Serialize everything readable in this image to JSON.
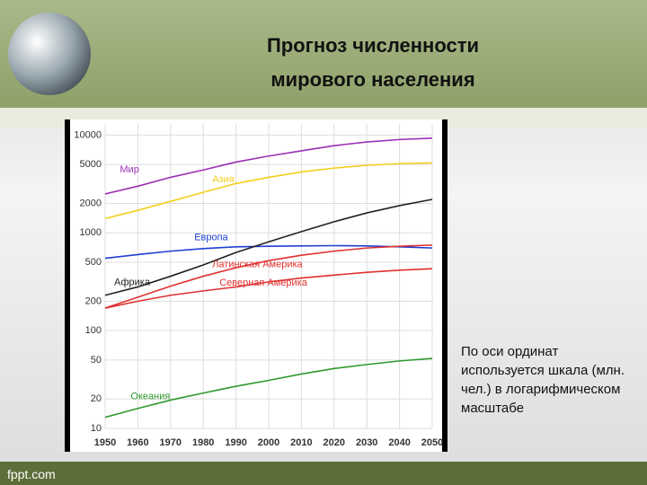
{
  "chart_data": {
    "type": "line",
    "title": "Прогноз численности мирового населения",
    "annotation": "По оси ординат используется шкала (млн. чел.) в логарифмическом масштабе",
    "x": [
      1950,
      1960,
      1970,
      1980,
      1990,
      2000,
      2010,
      2020,
      2030,
      2040,
      2050
    ],
    "xlim": [
      1950,
      2050
    ],
    "xticks": [
      1950,
      1960,
      1970,
      1980,
      1990,
      2000,
      2010,
      2020,
      2030,
      2040,
      2050
    ],
    "ylim": [
      10,
      13000
    ],
    "yticks": [
      10,
      20,
      50,
      100,
      200,
      500,
      1000,
      2000,
      5000,
      10000
    ],
    "log_scale": true,
    "grid": true,
    "series": [
      {
        "name": "Мир",
        "color": "#9b30b5",
        "values": [
          2500,
          3000,
          3700,
          4400,
          5300,
          6100,
          6900,
          7800,
          8500,
          9000,
          9300
        ]
      },
      {
        "name": "Азия",
        "color": "#f2cf1c",
        "values": [
          1400,
          1700,
          2100,
          2600,
          3200,
          3700,
          4200,
          4600,
          4900,
          5100,
          5200
        ]
      },
      {
        "name": "Европа",
        "color": "#1f3fd0",
        "values": [
          550,
          600,
          650,
          690,
          720,
          730,
          735,
          740,
          735,
          720,
          700
        ]
      },
      {
        "name": "Африка",
        "color": "#222222",
        "values": [
          230,
          280,
          360,
          470,
          630,
          810,
          1030,
          1300,
          1600,
          1900,
          2200
        ]
      },
      {
        "name": "Латинская Америка",
        "color": "#e03030",
        "values": [
          170,
          220,
          285,
          360,
          440,
          520,
          590,
          650,
          700,
          730,
          750
        ]
      },
      {
        "name": "Северная Америка",
        "color": "#e03030",
        "values": [
          170,
          200,
          230,
          255,
          280,
          315,
          345,
          370,
          395,
          415,
          430
        ]
      },
      {
        "name": "Океания",
        "color": "#2e9a2e",
        "values": [
          13,
          16,
          19.5,
          23,
          27,
          31,
          36,
          41,
          45,
          49,
          52
        ]
      }
    ]
  },
  "footer": "fppt.com"
}
